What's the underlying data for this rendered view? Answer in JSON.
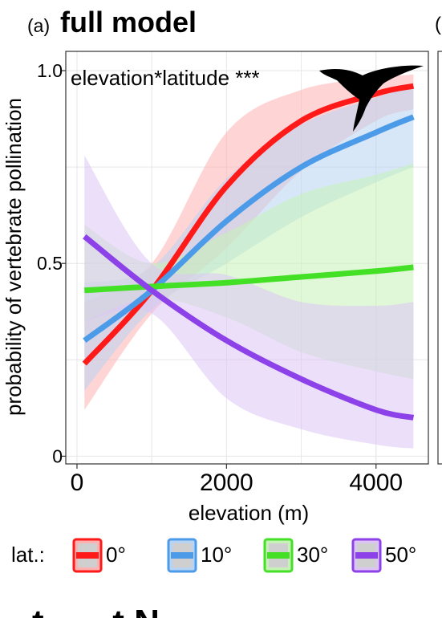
{
  "panel": {
    "tag": "(a)",
    "title": "full model",
    "next_tag": "(",
    "bottom_fragment": "t . . . t N"
  },
  "chart_data": {
    "type": "line",
    "title": "full model",
    "xlabel": "elevation (m)",
    "ylabel": "probability of vertebrate pollination",
    "xlim": [
      -150,
      4700
    ],
    "ylim": [
      -0.02,
      1.05
    ],
    "xticks": [
      0,
      2000,
      4000
    ],
    "xtick_labels": [
      "0",
      "2000",
      "4000"
    ],
    "yticks": [
      0,
      0.5,
      1.0
    ],
    "ytick_labels": [
      "0",
      "0.5",
      "1.0"
    ],
    "grid": true,
    "annotation": "elevation*latitude ***",
    "legend": {
      "title": "lat.:",
      "position": "bottom"
    },
    "x": [
      100,
      1000,
      2000,
      3000,
      4000,
      4500
    ],
    "series": [
      {
        "name": "0°",
        "color": "#ff1a1a",
        "band_color": "#ffb0b0",
        "values": [
          0.24,
          0.43,
          0.7,
          0.87,
          0.94,
          0.96
        ],
        "lower": [
          0.12,
          0.37,
          0.54,
          0.74,
          0.87,
          0.9
        ],
        "upper": [
          0.4,
          0.5,
          0.84,
          0.95,
          0.98,
          0.99
        ]
      },
      {
        "name": "10°",
        "color": "#4c9be8",
        "band_color": "#b8d4f2",
        "values": [
          0.3,
          0.43,
          0.61,
          0.75,
          0.84,
          0.88
        ],
        "lower": [
          0.17,
          0.38,
          0.5,
          0.62,
          0.71,
          0.75
        ],
        "upper": [
          0.45,
          0.49,
          0.72,
          0.86,
          0.93,
          0.96
        ]
      },
      {
        "name": "30°",
        "color": "#44e026",
        "band_color": "#c6f2b8",
        "values": [
          0.43,
          0.44,
          0.45,
          0.465,
          0.48,
          0.49
        ],
        "lower": [
          0.35,
          0.41,
          0.36,
          0.27,
          0.22,
          0.2
        ],
        "upper": [
          0.6,
          0.5,
          0.58,
          0.68,
          0.73,
          0.76
        ]
      },
      {
        "name": "50°",
        "color": "#8c42e8",
        "band_color": "#dcc4f5",
        "values": [
          0.57,
          0.43,
          0.3,
          0.2,
          0.12,
          0.1
        ],
        "lower": [
          0.35,
          0.37,
          0.15,
          0.07,
          0.03,
          0.02
        ],
        "upper": [
          0.78,
          0.5,
          0.47,
          0.4,
          0.39,
          0.4
        ]
      }
    ]
  }
}
